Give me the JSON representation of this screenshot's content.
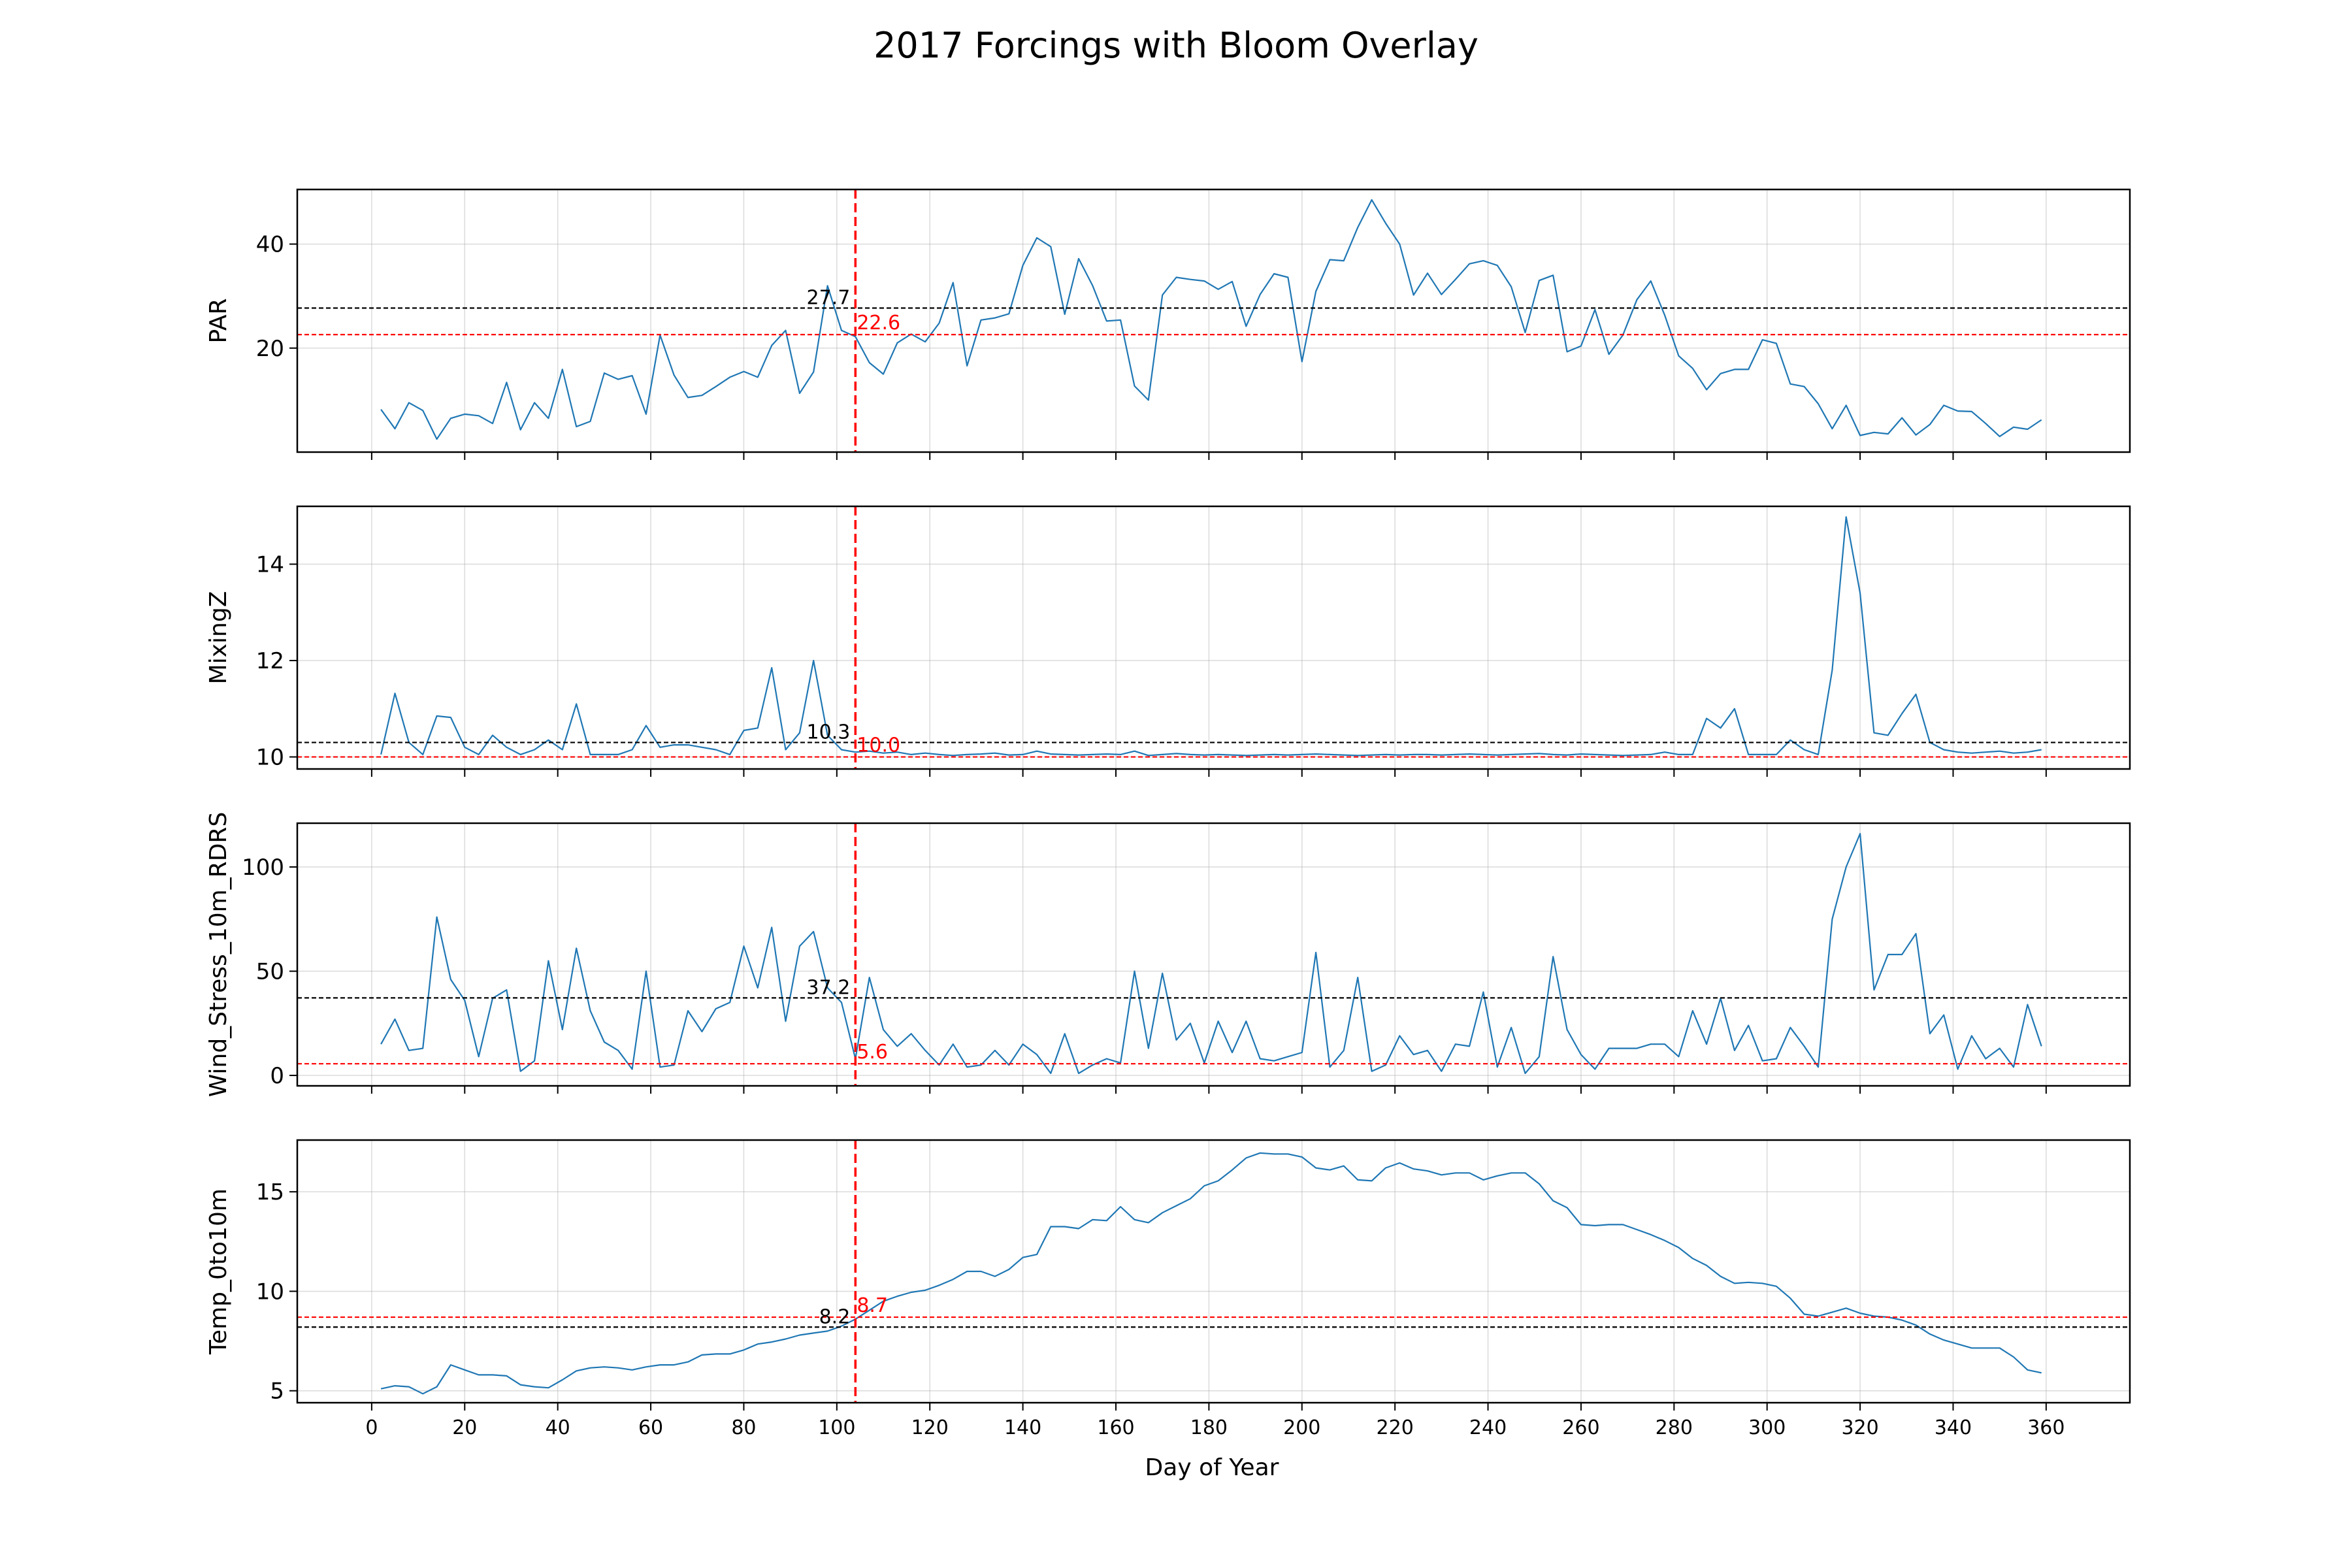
{
  "chart_data": {
    "type": "line",
    "title": "2017 Forcings with Bloom Overlay",
    "xlabel": "Day of Year",
    "x_ticks": [
      0,
      20,
      40,
      60,
      80,
      100,
      120,
      140,
      160,
      180,
      200,
      220,
      240,
      260,
      280,
      300,
      320,
      340,
      360
    ],
    "xlim": [
      -16,
      378
    ],
    "grid": true,
    "bloom_day": 104,
    "line_color": "#1f77b4",
    "bloom_color": "#ff0000",
    "mean_color": "#000000",
    "subplots": [
      {
        "ylabel": "PAR",
        "ylim": [
          0,
          50.5
        ],
        "yticks": [
          20,
          40
        ],
        "black_line": {
          "value": 27.7,
          "label": "27.7"
        },
        "red_line": {
          "value": 22.6,
          "label": "22.6"
        },
        "x": [
          2,
          5,
          8,
          11,
          14,
          17,
          20,
          23,
          26,
          29,
          32,
          35,
          38,
          41,
          44,
          47,
          50,
          53,
          56,
          59,
          62,
          65,
          68,
          71,
          74,
          77,
          80,
          83,
          86,
          89,
          92,
          95,
          98,
          101,
          104,
          107,
          110,
          113,
          116,
          119,
          122,
          125,
          128,
          131,
          134,
          137,
          140,
          143,
          146,
          149,
          152,
          155,
          158,
          161,
          164,
          167,
          170,
          173,
          176,
          179,
          182,
          185,
          188,
          191,
          194,
          197,
          200,
          203,
          206,
          209,
          212,
          215,
          218,
          221,
          224,
          227,
          230,
          233,
          236,
          239,
          242,
          245,
          248,
          251,
          254,
          257,
          260,
          263,
          266,
          269,
          272,
          275,
          278,
          281,
          284,
          287,
          290,
          293,
          296,
          299,
          302,
          305,
          308,
          311,
          314,
          317,
          320,
          323,
          326,
          329,
          332,
          335,
          338,
          341,
          344,
          347,
          350,
          353,
          356,
          359
        ],
        "y": [
          8.2,
          4.5,
          9.5,
          8.0,
          2.5,
          6.5,
          7.3,
          7.0,
          5.5,
          13.4,
          4.3,
          9.5,
          6.5,
          15.9,
          4.9,
          5.9,
          15.2,
          14.0,
          14.7,
          7.3,
          22.5,
          14.8,
          10.5,
          10.9,
          12.6,
          14.4,
          15.5,
          14.4,
          20.5,
          23.4,
          11.3,
          15.4,
          32.0,
          23.4,
          22.2,
          17.2,
          15.0,
          21.0,
          22.7,
          21.2,
          24.8,
          32.6,
          16.6,
          25.4,
          25.8,
          26.6,
          35.9,
          41.2,
          39.5,
          26.5,
          37.2,
          32.0,
          25.2,
          25.4,
          12.7,
          10.0,
          30.2,
          33.6,
          33.2,
          32.9,
          31.3,
          32.8,
          24.2,
          30.3,
          34.3,
          33.6,
          17.4,
          30.9,
          37.0,
          36.8,
          43.2,
          48.5,
          44.0,
          40.0,
          30.2,
          34.4,
          30.3,
          33.2,
          36.2,
          36.8,
          35.9,
          31.8,
          23.0,
          33.0,
          34.0,
          19.3,
          20.4,
          27.4,
          18.8,
          22.5,
          29.3,
          32.9,
          26.3,
          18.5,
          16.1,
          12.0,
          15.1,
          15.9,
          15.9,
          21.6,
          20.9,
          13.1,
          12.6,
          9.3,
          4.5,
          9.0,
          3.2,
          3.8,
          3.5,
          6.6,
          3.3,
          5.3,
          9.0,
          7.9,
          7.8,
          5.5,
          3.0,
          4.8,
          4.4,
          6.2
        ]
      },
      {
        "ylabel": "MixingZ",
        "ylim": [
          9.75,
          15.2
        ],
        "yticks": [
          10,
          12,
          14
        ],
        "black_line": {
          "value": 10.3,
          "label": "10.3"
        },
        "red_line": {
          "value": 10.0,
          "label": "10.0"
        },
        "x": [
          2,
          5,
          8,
          11,
          14,
          17,
          20,
          23,
          26,
          29,
          32,
          35,
          38,
          41,
          44,
          47,
          50,
          53,
          56,
          59,
          62,
          65,
          68,
          71,
          74,
          77,
          80,
          83,
          86,
          89,
          92,
          95,
          98,
          101,
          104,
          107,
          110,
          113,
          116,
          119,
          122,
          125,
          128,
          131,
          134,
          137,
          140,
          143,
          146,
          149,
          152,
          155,
          158,
          161,
          164,
          167,
          170,
          173,
          176,
          179,
          182,
          185,
          188,
          191,
          194,
          197,
          200,
          203,
          206,
          209,
          212,
          215,
          218,
          221,
          224,
          227,
          230,
          233,
          236,
          239,
          242,
          245,
          248,
          251,
          254,
          257,
          260,
          263,
          266,
          269,
          272,
          275,
          278,
          281,
          284,
          287,
          290,
          293,
          296,
          299,
          302,
          305,
          308,
          311,
          314,
          317,
          320,
          323,
          326,
          329,
          332,
          335,
          338,
          341,
          344,
          347,
          350,
          353,
          356,
          359
        ],
        "y": [
          10.05,
          11.32,
          10.3,
          10.05,
          10.85,
          10.82,
          10.2,
          10.05,
          10.45,
          10.2,
          10.05,
          10.15,
          10.35,
          10.15,
          11.1,
          10.05,
          10.05,
          10.05,
          10.15,
          10.65,
          10.2,
          10.25,
          10.25,
          10.2,
          10.15,
          10.05,
          10.55,
          10.6,
          11.85,
          10.15,
          10.5,
          12.0,
          10.45,
          10.15,
          10.1,
          10.12,
          10.08,
          10.1,
          10.05,
          10.08,
          10.05,
          10.03,
          10.05,
          10.06,
          10.08,
          10.04,
          10.05,
          10.12,
          10.06,
          10.05,
          10.04,
          10.05,
          10.06,
          10.05,
          10.12,
          10.03,
          10.05,
          10.07,
          10.05,
          10.04,
          10.05,
          10.04,
          10.03,
          10.04,
          10.05,
          10.04,
          10.05,
          10.06,
          10.05,
          10.04,
          10.03,
          10.04,
          10.05,
          10.04,
          10.05,
          10.05,
          10.04,
          10.05,
          10.06,
          10.05,
          10.04,
          10.05,
          10.06,
          10.07,
          10.05,
          10.04,
          10.06,
          10.05,
          10.04,
          10.03,
          10.04,
          10.05,
          10.1,
          10.05,
          10.05,
          10.8,
          10.6,
          11.0,
          10.05,
          10.05,
          10.05,
          10.35,
          10.15,
          10.05,
          11.8,
          14.98,
          13.4,
          10.5,
          10.45,
          10.9,
          11.3,
          10.3,
          10.15,
          10.1,
          10.08,
          10.1,
          10.12,
          10.08,
          10.1,
          10.15
        ]
      },
      {
        "ylabel": "Wind_Stress_10m_RDRS",
        "ylim": [
          -5,
          121
        ],
        "yticks": [
          0,
          50,
          100
        ],
        "black_line": {
          "value": 37.2,
          "label": "37.2"
        },
        "red_line": {
          "value": 5.6,
          "label": "5.6"
        },
        "x": [
          2,
          5,
          8,
          11,
          14,
          17,
          20,
          23,
          26,
          29,
          32,
          35,
          38,
          41,
          44,
          47,
          50,
          53,
          56,
          59,
          62,
          65,
          68,
          71,
          74,
          77,
          80,
          83,
          86,
          89,
          92,
          95,
          98,
          101,
          104,
          107,
          110,
          113,
          116,
          119,
          122,
          125,
          128,
          131,
          134,
          137,
          140,
          143,
          146,
          149,
          152,
          155,
          158,
          161,
          164,
          167,
          170,
          173,
          176,
          179,
          182,
          185,
          188,
          191,
          194,
          197,
          200,
          203,
          206,
          209,
          212,
          215,
          218,
          221,
          224,
          227,
          230,
          233,
          236,
          239,
          242,
          245,
          248,
          251,
          254,
          257,
          260,
          263,
          266,
          269,
          272,
          275,
          278,
          281,
          284,
          287,
          290,
          293,
          296,
          299,
          302,
          305,
          308,
          311,
          314,
          317,
          320,
          323,
          326,
          329,
          332,
          335,
          338,
          341,
          344,
          347,
          350,
          353,
          356,
          359
        ],
        "y": [
          15,
          27,
          12,
          13,
          76,
          46,
          36,
          9,
          37,
          41,
          2,
          7,
          55,
          22,
          61,
          31,
          16,
          12,
          3,
          50,
          4,
          5,
          31,
          21,
          32,
          35,
          62,
          42,
          71,
          26,
          62,
          69,
          42,
          35,
          8,
          47,
          22,
          14,
          20,
          12,
          5,
          15,
          4,
          5,
          12,
          5,
          15,
          10,
          1,
          20,
          1,
          5,
          8,
          6,
          50,
          13,
          49,
          17,
          25,
          6,
          26,
          11,
          26,
          8,
          7,
          9,
          11,
          59,
          4,
          12,
          47,
          2,
          5,
          19,
          10,
          12,
          2,
          15,
          14,
          40,
          4,
          23,
          1,
          9,
          57,
          22,
          10,
          3,
          13,
          13,
          13,
          15,
          15,
          9,
          31,
          15,
          37,
          12,
          24,
          7,
          8,
          23,
          14,
          4,
          75,
          100,
          116,
          41,
          58,
          58,
          68,
          20,
          29,
          3,
          19,
          8,
          13,
          4,
          34,
          14
        ]
      },
      {
        "ylabel": "Temp_0to10m",
        "ylim": [
          4.4,
          17.6
        ],
        "yticks": [
          5,
          10,
          15
        ],
        "black_line": {
          "value": 8.2,
          "label": "8.2"
        },
        "red_line": {
          "value": 8.7,
          "label": "8.7"
        },
        "x": [
          2,
          5,
          8,
          11,
          14,
          17,
          20,
          23,
          26,
          29,
          32,
          35,
          38,
          41,
          44,
          47,
          50,
          53,
          56,
          59,
          62,
          65,
          68,
          71,
          74,
          77,
          80,
          83,
          86,
          89,
          92,
          95,
          98,
          101,
          104,
          107,
          110,
          113,
          116,
          119,
          122,
          125,
          128,
          131,
          134,
          137,
          140,
          143,
          146,
          149,
          152,
          155,
          158,
          161,
          164,
          167,
          170,
          173,
          176,
          179,
          182,
          185,
          188,
          191,
          194,
          197,
          200,
          203,
          206,
          209,
          212,
          215,
          218,
          221,
          224,
          227,
          230,
          233,
          236,
          239,
          242,
          245,
          248,
          251,
          254,
          257,
          260,
          263,
          266,
          269,
          272,
          275,
          278,
          281,
          284,
          287,
          290,
          293,
          296,
          299,
          302,
          305,
          308,
          311,
          314,
          317,
          320,
          323,
          326,
          329,
          332,
          335,
          338,
          341,
          344,
          347,
          350,
          353,
          356,
          359
        ],
        "y": [
          5.1,
          5.25,
          5.2,
          4.85,
          5.2,
          6.3,
          6.05,
          5.8,
          5.8,
          5.75,
          5.3,
          5.2,
          5.15,
          5.55,
          6.0,
          6.15,
          6.2,
          6.15,
          6.05,
          6.2,
          6.3,
          6.3,
          6.45,
          6.8,
          6.85,
          6.85,
          7.05,
          7.35,
          7.45,
          7.6,
          7.8,
          7.9,
          8.0,
          8.25,
          8.6,
          9.05,
          9.5,
          9.75,
          9.95,
          10.05,
          10.3,
          10.6,
          11.0,
          11.0,
          10.75,
          11.1,
          11.7,
          11.85,
          13.25,
          13.25,
          13.15,
          13.6,
          13.55,
          14.25,
          13.6,
          13.45,
          13.95,
          14.3,
          14.65,
          15.3,
          15.55,
          16.1,
          16.7,
          16.95,
          16.9,
          16.9,
          16.75,
          16.2,
          16.1,
          16.3,
          15.6,
          15.55,
          16.2,
          16.45,
          16.15,
          16.05,
          15.85,
          15.95,
          15.95,
          15.6,
          15.8,
          15.95,
          15.95,
          15.4,
          14.55,
          14.2,
          13.35,
          13.3,
          13.35,
          13.35,
          13.1,
          12.85,
          12.55,
          12.2,
          11.65,
          11.3,
          10.75,
          10.4,
          10.45,
          10.4,
          10.25,
          9.65,
          8.85,
          8.75,
          8.95,
          9.15,
          8.9,
          8.75,
          8.7,
          8.55,
          8.3,
          7.85,
          7.55,
          7.35,
          7.15,
          7.15,
          7.15,
          6.7,
          6.05,
          5.9
        ]
      }
    ]
  }
}
